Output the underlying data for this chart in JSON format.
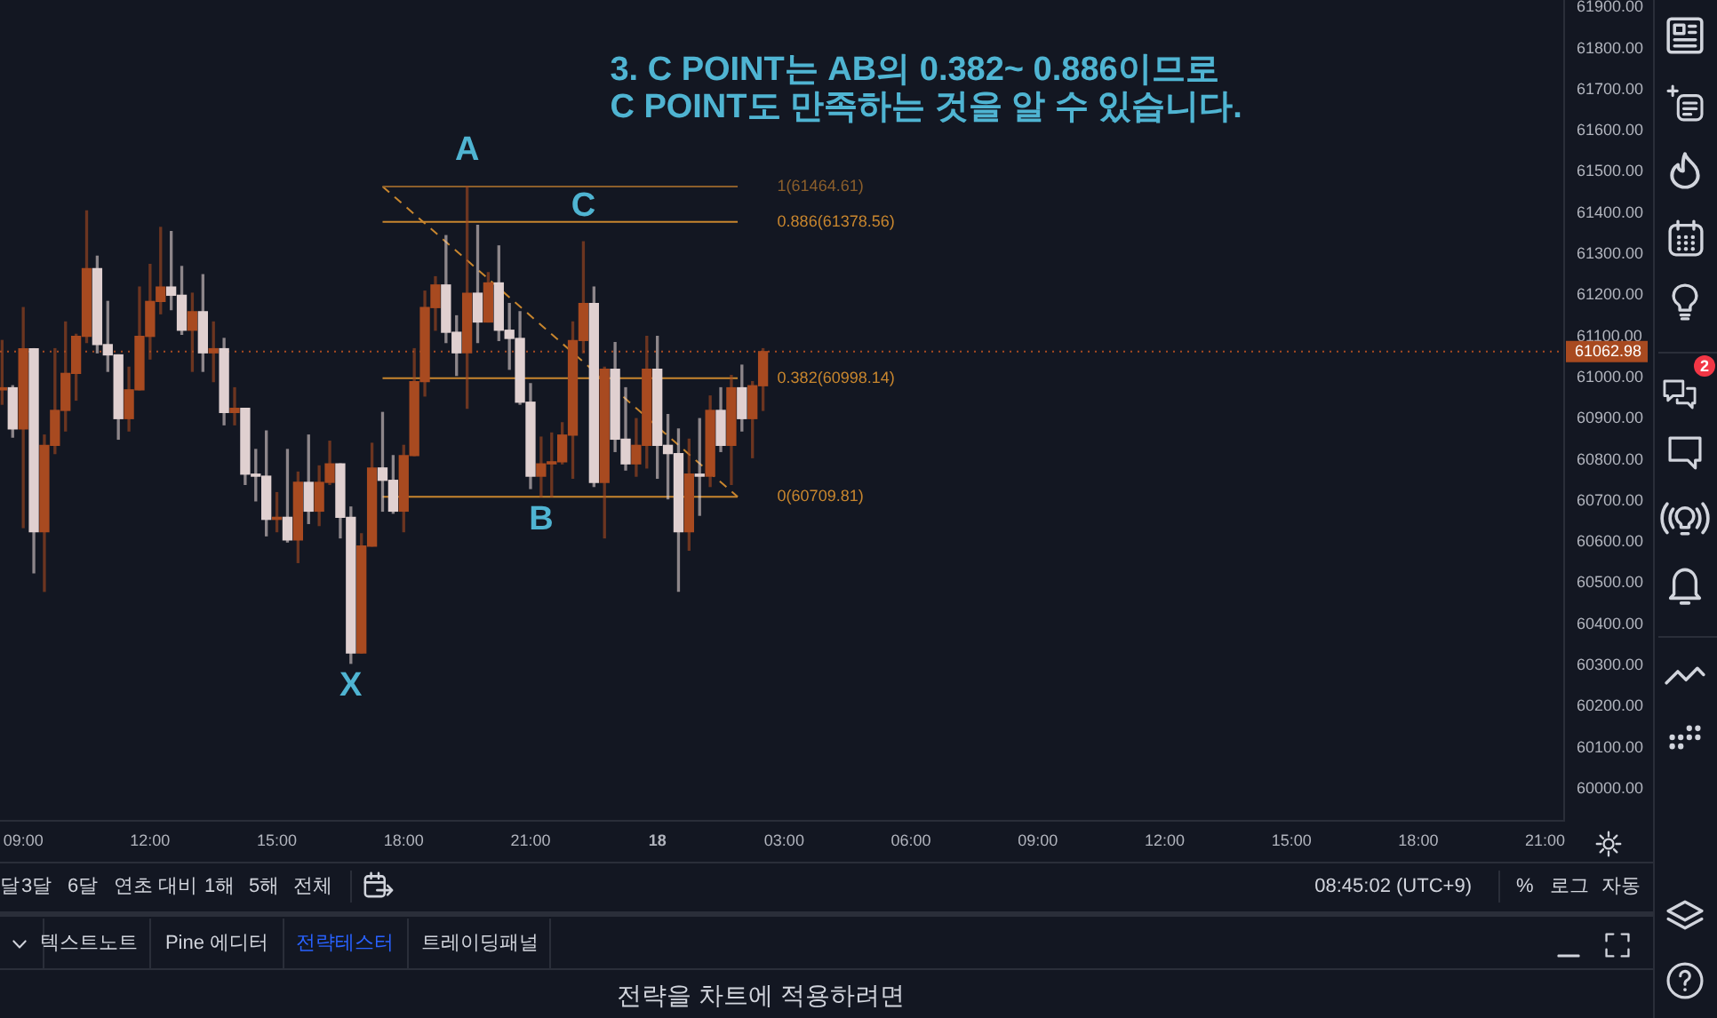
{
  "chart_data": {
    "type": "candlestick",
    "title": "3. C POINT는 AB의 0.382~ 0.886이므로\nC POINT도 만족하는 것을 알 수 있습니다.",
    "x": [
      "--03-17T08:30",
      "--03-17T08:45",
      "--03-17T09:00",
      "--03-17T09:15",
      "--03-17T09:30",
      "--03-17T09:45",
      "--03-17T10:00",
      "--03-17T10:15",
      "--03-17T10:30",
      "--03-17T10:45",
      "--03-17T11:00",
      "--03-17T11:15",
      "--03-17T11:30",
      "--03-17T11:45",
      "--03-17T12:00",
      "--03-17T12:15",
      "--03-17T12:30",
      "--03-17T12:45",
      "--03-17T13:00",
      "--03-17T13:15",
      "--03-17T13:30",
      "--03-17T13:45",
      "--03-17T14:00",
      "--03-17T14:15",
      "--03-17T14:30",
      "--03-17T14:45",
      "--03-17T15:00",
      "--03-17T15:15",
      "--03-17T15:30",
      "--03-17T15:45",
      "--03-17T16:00",
      "--03-17T16:15",
      "--03-17T16:30",
      "--03-17T16:45",
      "--03-17T17:00",
      "--03-17T17:15",
      "--03-17T17:30",
      "--03-17T17:45",
      "--03-17T18:00",
      "--03-17T18:15",
      "--03-17T18:30",
      "--03-17T18:45",
      "--03-17T19:00",
      "--03-17T19:15",
      "--03-17T19:30",
      "--03-17T19:45",
      "--03-17T20:00",
      "--03-17T20:15",
      "--03-17T20:30",
      "--03-17T20:45",
      "--03-17T21:00",
      "--03-17T21:15",
      "--03-17T21:30",
      "--03-17T21:45",
      "--03-17T22:00",
      "--03-17T22:15",
      "--03-17T22:30",
      "--03-17T22:45",
      "--03-17T23:00",
      "--03-17T23:15",
      "--03-17T23:30",
      "--03-17T23:45",
      "--03-18T00:00",
      "--03-18T00:15",
      "--03-18T00:30",
      "--03-18T00:45",
      "--03-18T01:00",
      "--03-18T01:15",
      "--03-18T01:30",
      "--03-18T01:45",
      "--03-18T02:00",
      "--03-18T02:15",
      "--03-18T02:30"
    ],
    "ohlc": [
      [
        60970,
        61090,
        60935,
        60975
      ],
      [
        60975,
        60980,
        60855,
        60875
      ],
      [
        60875,
        61170,
        60635,
        61070
      ],
      [
        61070,
        61070,
        60525,
        60625
      ],
      [
        60625,
        60860,
        60480,
        60835
      ],
      [
        60835,
        61070,
        60815,
        60920
      ],
      [
        60920,
        61135,
        60870,
        61010
      ],
      [
        61010,
        61105,
        60945,
        61100
      ],
      [
        61100,
        61405,
        61085,
        61265
      ],
      [
        61265,
        61295,
        61060,
        61080
      ],
      [
        61080,
        61185,
        61015,
        61055
      ],
      [
        61055,
        61055,
        60850,
        60900
      ],
      [
        60900,
        61025,
        60870,
        60970
      ],
      [
        60970,
        61220,
        60970,
        61100
      ],
      [
        61100,
        61275,
        61045,
        61185
      ],
      [
        61185,
        61365,
        61155,
        61220
      ],
      [
        61220,
        61355,
        61165,
        61200
      ],
      [
        61200,
        61270,
        61105,
        61115
      ],
      [
        61115,
        61205,
        61015,
        61160
      ],
      [
        61160,
        61250,
        61015,
        61060
      ],
      [
        61060,
        61135,
        60990,
        61070
      ],
      [
        61070,
        61095,
        60885,
        60915
      ],
      [
        60915,
        60975,
        60885,
        60925
      ],
      [
        60925,
        60925,
        60740,
        60765
      ],
      [
        60765,
        60825,
        60700,
        60760
      ],
      [
        60760,
        60870,
        60615,
        60655
      ],
      [
        60655,
        60720,
        60625,
        60660
      ],
      [
        60660,
        60825,
        60600,
        60605
      ],
      [
        60605,
        60770,
        60550,
        60745
      ],
      [
        60745,
        60860,
        60645,
        60675
      ],
      [
        60675,
        60785,
        60640,
        60745
      ],
      [
        60745,
        60845,
        60740,
        60790
      ],
      [
        60790,
        60790,
        60610,
        60660
      ],
      [
        60660,
        60685,
        60305,
        60330
      ],
      [
        60330,
        60620,
        60330,
        60590
      ],
      [
        60590,
        60840,
        60590,
        60780
      ],
      [
        60780,
        60915,
        60675,
        60750
      ],
      [
        60750,
        60810,
        60670,
        60675
      ],
      [
        60675,
        60835,
        60625,
        60810
      ],
      [
        60810,
        61070,
        60810,
        60990
      ],
      [
        60990,
        61210,
        60955,
        61170
      ],
      [
        61170,
        61245,
        61115,
        61225
      ],
      [
        61225,
        61345,
        61085,
        61110
      ],
      [
        61110,
        61150,
        61005,
        61060
      ],
      [
        61060,
        61464.61,
        60925,
        61205
      ],
      [
        61205,
        61370,
        61085,
        61135
      ],
      [
        61135,
        61255,
        61135,
        61230
      ],
      [
        61230,
        61320,
        61090,
        61115
      ],
      [
        61115,
        61180,
        61020,
        61095
      ],
      [
        61095,
        61160,
        60935,
        60940
      ],
      [
        60940,
        60985,
        60730,
        60760
      ],
      [
        60760,
        60855,
        60710,
        60790
      ],
      [
        60790,
        60865,
        60710,
        60795
      ],
      [
        60795,
        60890,
        60790,
        60860
      ],
      [
        60860,
        61135,
        60755,
        61090
      ],
      [
        61090,
        61330,
        61060,
        61180
      ],
      [
        61180,
        61220,
        60735,
        60745
      ],
      [
        60745,
        61025,
        60610,
        61020
      ],
      [
        61020,
        61085,
        60820,
        60850
      ],
      [
        60850,
        60975,
        60775,
        60790
      ],
      [
        60790,
        60900,
        60760,
        60835
      ],
      [
        60835,
        61100,
        60780,
        61020
      ],
      [
        61020,
        61100,
        60755,
        60835
      ],
      [
        60835,
        60910,
        60705,
        60815
      ],
      [
        60815,
        60875,
        60480,
        60625
      ],
      [
        60625,
        60850,
        60580,
        60765
      ],
      [
        60765,
        60900,
        60665,
        60760
      ],
      [
        60760,
        60955,
        60735,
        60920
      ],
      [
        60920,
        60975,
        60820,
        60835
      ],
      [
        60835,
        61005,
        60740,
        60975
      ],
      [
        60975,
        61030,
        60870,
        60900
      ],
      [
        60900,
        60990,
        60805,
        60980
      ],
      [
        60980,
        61070,
        60920,
        61062.98
      ]
    ],
    "colors": [
      "#a84a20",
      "#e0d0d0",
      "#a84a20",
      "#e0d0d0",
      "#a84a20",
      "#a84a20",
      "#a84a20",
      "#a84a20",
      "#a84a20",
      "#e0d0d0",
      "#e0d0d0",
      "#e0d0d0",
      "#a84a20",
      "#a84a20",
      "#a84a20",
      "#a84a20",
      "#e0d0d0",
      "#e0d0d0",
      "#a84a20",
      "#e0d0d0",
      "#a84a20",
      "#e0d0d0",
      "#a84a20",
      "#e0d0d0",
      "#e0d0d0",
      "#e0d0d0",
      "#a84a20",
      "#e0d0d0",
      "#a84a20",
      "#e0d0d0",
      "#a84a20",
      "#a84a20",
      "#e0d0d0",
      "#e0d0d0",
      "#a84a20",
      "#a84a20",
      "#e0d0d0",
      "#e0d0d0",
      "#a84a20",
      "#a84a20",
      "#a84a20",
      "#a84a20",
      "#e0d0d0",
      "#e0d0d0",
      "#a84a20",
      "#e0d0d0",
      "#a84a20",
      "#e0d0d0",
      "#e0d0d0",
      "#e0d0d0",
      "#e0d0d0",
      "#a84a20",
      "#a84a20",
      "#a84a20",
      "#a84a20",
      "#a84a20",
      "#e0d0d0",
      "#a84a20",
      "#e0d0d0",
      "#e0d0d0",
      "#a84a20",
      "#a84a20",
      "#e0d0d0",
      "#e0d0d0",
      "#e0d0d0",
      "#a84a20",
      "#e0d0d0",
      "#a84a20",
      "#e0d0d0",
      "#a84a20",
      "#e0d0d0",
      "#a84a20",
      "#a84a20"
    ],
    "series": [
      {
        "type": "line",
        "name": "1(61464.61)",
        "color": "#8c5f2b",
        "x": [
          "--03-17T17:30",
          "--03-18T01:54"
        ],
        "values": [
          61464.61,
          61464.61
        ]
      },
      {
        "type": "line",
        "name": "0.886(61378.56)",
        "color": "#c8862e",
        "x": [
          "--03-17T17:30",
          "--03-18T01:54"
        ],
        "values": [
          61378.56,
          61378.56
        ]
      },
      {
        "type": "line",
        "name": "0.382(60998.14)",
        "color": "#c8862e",
        "x": [
          "--03-17T17:30",
          "--03-18T01:54"
        ],
        "values": [
          60998.14,
          60998.14
        ]
      },
      {
        "type": "line",
        "name": "0(60709.81)",
        "color": "#c8862e",
        "x": [
          "--03-17T17:30",
          "--03-18T01:54"
        ],
        "values": [
          60709.81,
          60709.81
        ]
      },
      {
        "type": "line",
        "color": "#c8862e",
        "line_style": "dashed",
        "x": [
          "--03-17T17:30",
          "--03-18T01:54"
        ],
        "values": [
          61464.61,
          60709.81
        ]
      }
    ],
    "xlim": [
      "--03-17T08:27",
      "--03-18T21:27"
    ],
    "xticks": [
      {
        "value": "--03-17T09:00",
        "label": "09:00"
      },
      {
        "value": "--03-17T12:00",
        "label": "12:00"
      },
      {
        "value": "--03-17T15:00",
        "label": "15:00"
      },
      {
        "value": "--03-17T18:00",
        "label": "18:00"
      },
      {
        "value": "--03-17T21:00",
        "label": "21:00"
      },
      {
        "value": "--03-18T00:00",
        "label": "18"
      },
      {
        "value": "--03-18T03:00",
        "label": "03:00"
      },
      {
        "value": "--03-18T06:00",
        "label": "06:00"
      },
      {
        "value": "--03-18T09:00",
        "label": "09:00"
      },
      {
        "value": "--03-18T12:00",
        "label": "12:00"
      },
      {
        "value": "--03-18T15:00",
        "label": "15:00"
      },
      {
        "value": "--03-18T18:00",
        "label": "18:00"
      },
      {
        "value": "--03-18T21:00",
        "label": "21:00"
      }
    ],
    "ylim": [
      59922,
      61918
    ],
    "yticks": [
      {
        "value": 60000,
        "label": "60000.00"
      },
      {
        "value": 60100,
        "label": "60100.00"
      },
      {
        "value": 60200,
        "label": "60200.00"
      },
      {
        "value": 60300,
        "label": "60300.00"
      },
      {
        "value": 60400,
        "label": "60400.00"
      },
      {
        "value": 60500,
        "label": "60500.00"
      },
      {
        "value": 60600,
        "label": "60600.00"
      },
      {
        "value": 60700,
        "label": "60700.00"
      },
      {
        "value": 60800,
        "label": "60800.00"
      },
      {
        "value": 60900,
        "label": "60900.00"
      },
      {
        "value": 61000,
        "label": "61000.00"
      },
      {
        "value": 61100,
        "label": "61100.00"
      },
      {
        "value": 61200,
        "label": "61200.00"
      },
      {
        "value": 61300,
        "label": "61300.00"
      },
      {
        "value": 61400,
        "label": "61400.00"
      },
      {
        "value": 61500,
        "label": "61500.00"
      },
      {
        "value": 61600,
        "label": "61600.00"
      },
      {
        "value": 61700,
        "label": "61700.00"
      },
      {
        "value": 61800,
        "label": "61800.00"
      },
      {
        "value": 61900,
        "label": "61900.00"
      }
    ],
    "grid": false,
    "marker": "none",
    "ref_lines": [
      {
        "axis": "y",
        "value": 61062.98,
        "label": "61062.98",
        "color": "#a84a20",
        "line_style": "dotted"
      }
    ],
    "annotations": [
      "달",
      "3달",
      "6달",
      "연초 대비",
      "1해",
      "5해",
      "전체",
      "08:45:02 (UTC+9)",
      "%",
      "로그",
      "자동",
      "텍스트노트",
      "Pine 에디터",
      "전략테스터",
      "트레이딩패널",
      "전략을 차트에 적용하려면",
      "2",
      {
        "text": "A",
        "x": "--03-17T19:30",
        "y": 61464.61
      },
      {
        "text": "B",
        "x": "--03-17T21:15",
        "y": 60709.81
      },
      {
        "text": "C",
        "x": "--03-17T22:15",
        "y": 61330
      },
      {
        "text": "X",
        "x": "--03-17T16:45",
        "y": 60305
      }
    ]
  }
}
